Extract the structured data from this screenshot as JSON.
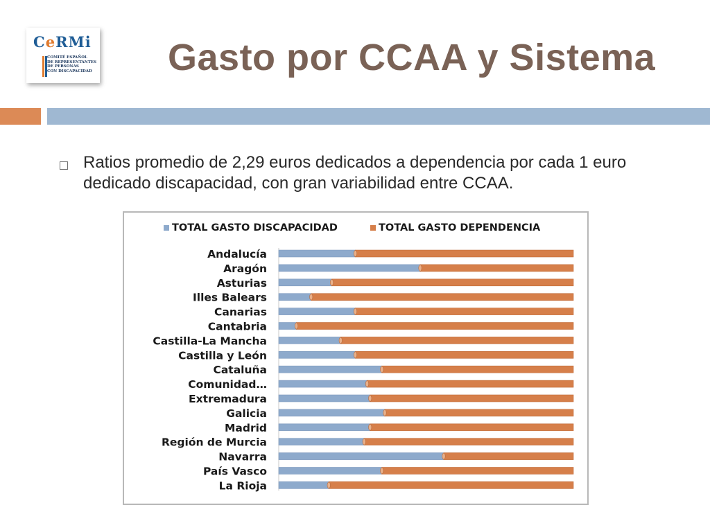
{
  "logo": {
    "name": "CERMI",
    "subtitle_lines": [
      "COMITÉ ESPAÑOL",
      "DE REPRESENTANTES",
      "DE PERSONAS",
      "CON DISCAPACIDAD"
    ]
  },
  "slide": {
    "title": "Gasto por CCAA y Sistema",
    "bullet": "Ratios promedio de 2,29 euros dedicados a dependencia por cada 1 euro dedicado discapacidad, con gran variabilidad entre CCAA."
  },
  "colors": {
    "discapacidad": "#8eaacc",
    "dependencia": "#d67f4a",
    "title": "#7a6256",
    "band_orange": "#dc8a56",
    "band_blue": "#9fb8d2"
  },
  "chart_data": {
    "type": "bar",
    "orientation": "horizontal",
    "stacking": "percent",
    "legend_position": "top",
    "grid": false,
    "xlim": [
      0,
      100
    ],
    "categories": [
      "Andalucía",
      "Aragón",
      "Asturias",
      "Illes Balears",
      "Canarias",
      "Cantabria",
      "Castilla-La Mancha",
      "Castilla y León",
      "Cataluña",
      "Comunidad…",
      "Extremadura",
      "Galicia",
      "Madrid",
      "Región de Murcia",
      "Navarra",
      "País Vasco",
      "La Rioja"
    ],
    "series": [
      {
        "name": "TOTAL GASTO DISCAPACIDAD",
        "values": [
          26,
          48,
          18,
          11,
          26,
          6,
          21,
          26,
          35,
          30,
          31,
          36,
          31,
          29,
          56,
          35,
          17
        ]
      },
      {
        "name": "TOTAL GASTO DEPENDENCIA",
        "values": [
          74,
          52,
          82,
          89,
          74,
          94,
          79,
          74,
          65,
          70,
          69,
          64,
          69,
          71,
          44,
          65,
          83
        ]
      }
    ]
  }
}
